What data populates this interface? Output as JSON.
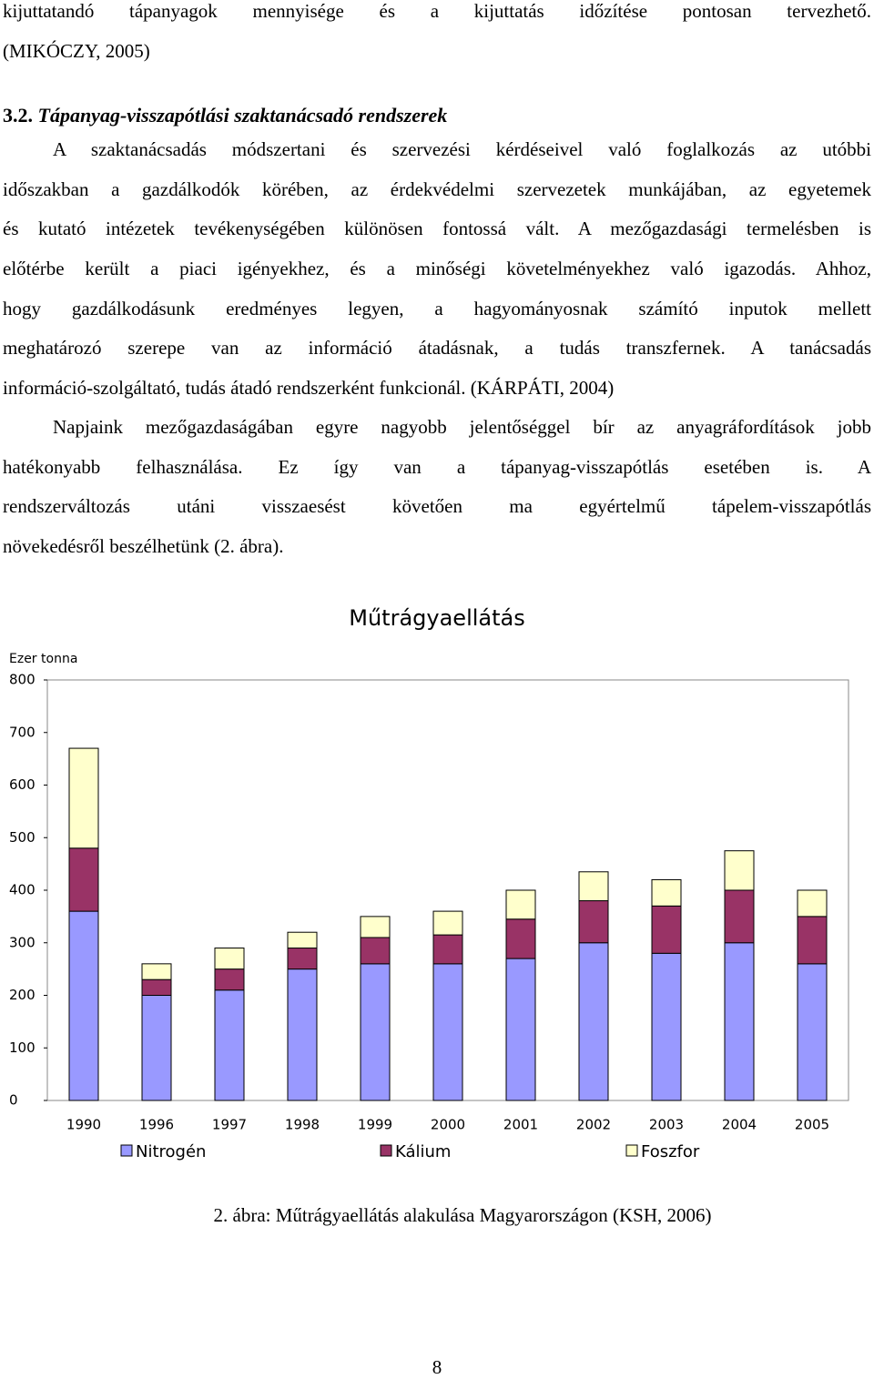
{
  "intro": {
    "lines": [
      "kijuttatandó tápanyagok mennyisége és a kijuttatás időzítése pontosan tervezhető.",
      "(MIKÓCZY, 2005)"
    ]
  },
  "heading": {
    "number": "3.2.",
    "title": "Tápanyag-visszapótlási szaktanácsadó rendszerek"
  },
  "paragraph1": {
    "lines": [
      "A szaktanácsadás módszertani és szervezési kérdéseivel való foglalkozás az utóbbi",
      "időszakban a gazdálkodók körében, az érdekvédelmi szervezetek munkájában, az egyetemek",
      "és kutató intézetek tevékenységében különösen fontossá vált. A mezőgazdasági termelésben is",
      "előtérbe került a piaci igényekhez, és a minőségi követelményekhez való igazodás. Ahhoz,",
      "hogy gazdálkodásunk eredményes legyen, a hagyományosnak számító inputok mellett",
      "meghatározó szerepe van az információ átadásnak, a tudás transzfernek. A tanácsadás",
      "információ-szolgáltató, tudás átadó rendszerként funkcionál. (KÁRPÁTI, 2004)"
    ]
  },
  "paragraph2": {
    "lines": [
      "Napjaink mezőgazdaságában egyre nagyobb jelentőséggel bír az anyagráfordítások jobb",
      "hatékonyabb felhasználása. Ez így van a tápanyag-visszapótlás esetében is. A",
      "rendszerváltozás utáni visszaesést követően ma egyértelmű tápelem-visszapótlás",
      "növekedésről beszélhetünk (2. ábra)."
    ]
  },
  "chart_data": {
    "type": "stacked-bar",
    "title": "Műtrágyaellátás",
    "y_label": "Ezer tonna",
    "categories": [
      "1990",
      "1996",
      "1997",
      "1998",
      "1999",
      "2000",
      "2001",
      "2002",
      "2003",
      "2004",
      "2005"
    ],
    "series": [
      {
        "name": "Nitrogén",
        "color": "#9999ff",
        "values": [
          360,
          200,
          210,
          250,
          260,
          260,
          270,
          300,
          280,
          300,
          260
        ]
      },
      {
        "name": "Kálium",
        "color": "#993366",
        "values": [
          120,
          30,
          40,
          40,
          50,
          55,
          75,
          80,
          90,
          100,
          90
        ]
      },
      {
        "name": "Foszfor",
        "color": "#ffffcc",
        "values": [
          190,
          30,
          40,
          30,
          40,
          45,
          55,
          55,
          50,
          75,
          50
        ]
      }
    ],
    "ylim": [
      0,
      800
    ],
    "yticks": [
      0,
      100,
      200,
      300,
      400,
      500,
      600,
      700,
      800
    ],
    "grid": false,
    "legend": "bottom"
  },
  "caption": "2. ábra: Műtrágyaellátás alakulása Magyarországon  (KSH, 2006)",
  "page_number": "8"
}
